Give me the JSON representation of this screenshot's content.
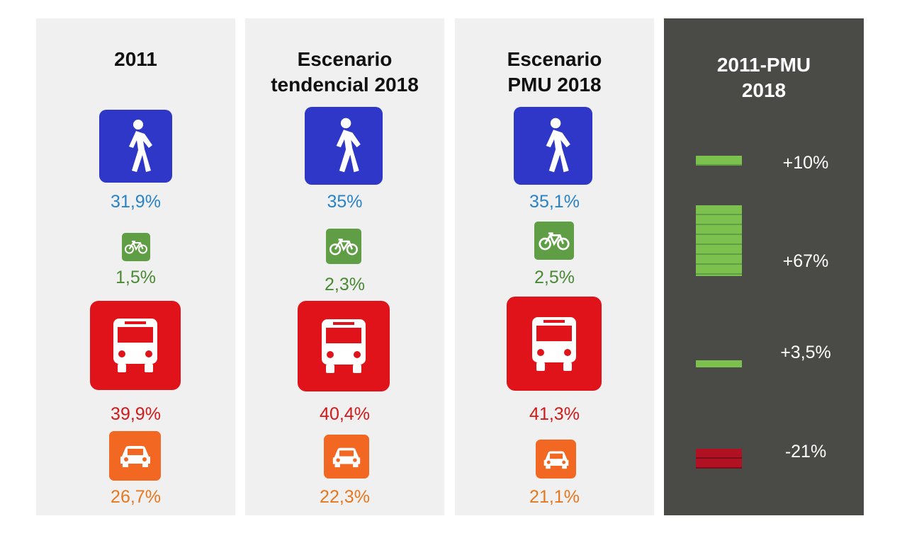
{
  "panels": [
    {
      "title_lines": [
        "2011",
        ""
      ],
      "walk": "31,9%",
      "bike": "1,5%",
      "bus": "39,9%",
      "car": "26,7%"
    },
    {
      "title_lines": [
        "Escenario",
        "tendencial 2018"
      ],
      "walk": "35%",
      "bike": "2,3%",
      "bus": "40,4%",
      "car": "22,3%"
    },
    {
      "title_lines": [
        "Escenario",
        "PMU 2018"
      ],
      "walk": "35,1%",
      "bike": "2,5%",
      "bus": "41,3%",
      "car": "21,1%"
    }
  ],
  "change_panel": {
    "title_lines": [
      "2011-PMU",
      "2018"
    ],
    "rows": [
      {
        "label": "+10%",
        "value_percent": 10,
        "color": "#7cc04e",
        "icon": "walk-change-bar"
      },
      {
        "label": "+67%",
        "value_percent": 67,
        "color": "#7cc04e",
        "icon": "bike-change-bar"
      },
      {
        "label": "+3,5%",
        "value_percent": 3.5,
        "color": "#7cc04e",
        "icon": "bus-change-bar"
      },
      {
        "label": "-21%",
        "value_percent": -21,
        "color": "#b01224",
        "icon": "car-change-bar"
      }
    ]
  },
  "colors": {
    "walk": "#2f37c8",
    "bike": "#5f9e44",
    "bus": "#e0131b",
    "car": "#f26722",
    "dark_panel": "#4a4a46"
  },
  "icons": [
    "pedestrian-icon",
    "bicycle-icon",
    "bus-icon",
    "car-icon"
  ]
}
